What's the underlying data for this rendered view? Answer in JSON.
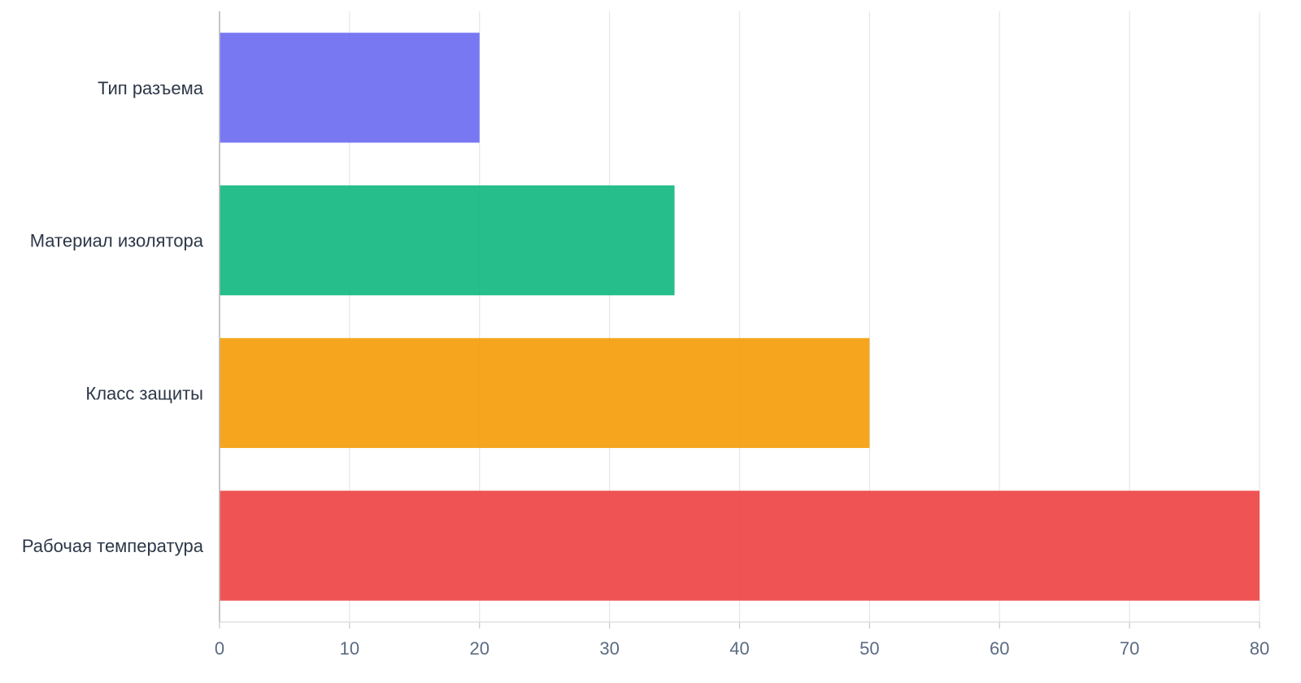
{
  "chart_data": {
    "type": "bar",
    "orientation": "horizontal",
    "title": "",
    "xlabel": "",
    "ylabel": "",
    "categories": [
      "Тип разъема",
      "Материал изолятора",
      "Класс защиты",
      "Рабочая температура"
    ],
    "values": [
      20,
      35,
      50,
      80
    ],
    "colors": [
      "#6c6cf2",
      "#14b981",
      "#f59e0b",
      "#ef4444"
    ],
    "xlim": [
      0,
      80
    ],
    "xticks": [
      0,
      10,
      20,
      30,
      40,
      50,
      60,
      70,
      80
    ],
    "grid": true,
    "legend": "none"
  }
}
